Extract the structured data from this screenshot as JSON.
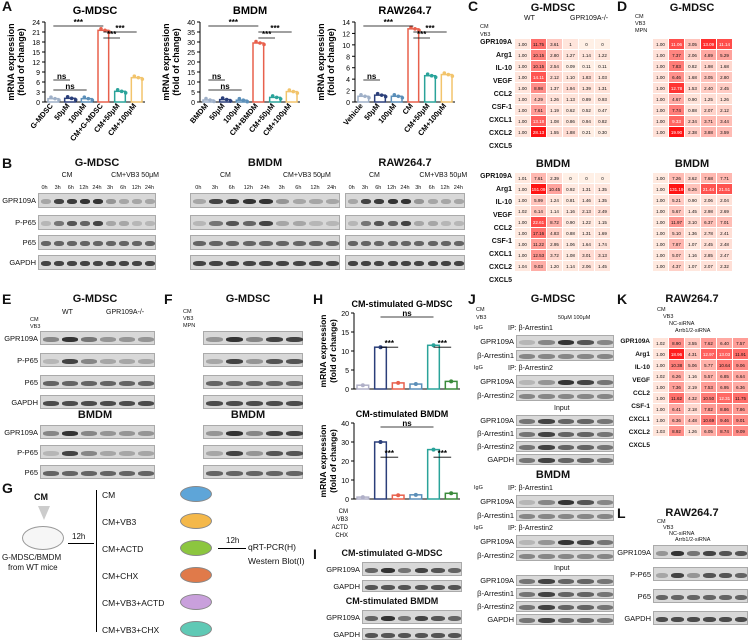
{
  "panels": {
    "A": "A",
    "B": "B",
    "C": "C",
    "D": "D",
    "E": "E",
    "F": "F",
    "G": "G",
    "H": "H",
    "I": "I",
    "J": "J",
    "K": "K",
    "L": "L"
  },
  "a_charts": [
    {
      "title": "G-MDSC",
      "ylabel": "mRNA expression\n(fold of change)",
      "yticks": [
        "0",
        "3",
        "6",
        "9",
        "12",
        "15",
        "18",
        "21",
        "24"
      ],
      "ymax": 24,
      "categories": [
        "G-MDSC",
        "50μM",
        "100μM",
        "CM+G-MDSC",
        "CM+50μM",
        "CM+100μM"
      ],
      "values": [
        1.0,
        1.1,
        1.0,
        21.5,
        3.2,
        7.3
      ],
      "colors": [
        "#9fb0c8",
        "#2b3f7a",
        "#5b8fb9",
        "#e8604c",
        "#2aa39a",
        "#f2c46c"
      ],
      "sig": [
        "***",
        "***",
        "***",
        "ns",
        "ns"
      ]
    },
    {
      "title": "BMDM",
      "ylabel": "mRNA expression\n(fold of change)",
      "yticks": [
        "0",
        "5",
        "10",
        "15",
        "20",
        "25",
        "30",
        "35",
        "40"
      ],
      "ymax": 40,
      "categories": [
        "BMDM",
        "50μM",
        "100μM",
        "CM+BMDM",
        "CM+50μM",
        "CM+100μM"
      ],
      "values": [
        1.0,
        1.2,
        0.9,
        29.5,
        2.3,
        5.2
      ],
      "colors": [
        "#9fb0c8",
        "#2b3f7a",
        "#5b8fb9",
        "#e8604c",
        "#2aa39a",
        "#f2c46c"
      ],
      "sig": [
        "***",
        "***",
        "***",
        "ns",
        "ns"
      ]
    },
    {
      "title": "RAW264.7",
      "ylabel": "mRNA expression\n(fold of change)",
      "yticks": [
        "0",
        "2",
        "4",
        "6",
        "8",
        "10",
        "12",
        "14"
      ],
      "ymax": 14,
      "categories": [
        "Vehicle",
        "50μM",
        "100μM",
        "CM",
        "CM+50μM",
        "CM+100μM"
      ],
      "values": [
        1.0,
        1.2,
        1.0,
        12.8,
        4.6,
        4.8
      ],
      "colors": [
        "#9fb0c8",
        "#2b3f7a",
        "#5b8fb9",
        "#e8604c",
        "#2aa39a",
        "#f2c46c"
      ],
      "sig": [
        "***",
        "***",
        "***",
        "ns"
      ]
    }
  ],
  "B": {
    "rows": [
      "GPR109A",
      "P-P65",
      "P65",
      "GAPDH"
    ],
    "groups": [
      {
        "title": "G-MDSC",
        "cm": "CM",
        "vb3": "CM+VB3 50μM",
        "lanes": [
          "0h",
          "3h",
          "6h",
          "12h",
          "24h",
          "3h",
          "6h",
          "12h",
          "24h"
        ]
      },
      {
        "title": "BMDM",
        "cm": "CM",
        "vb3": "CM+VB3 50μM",
        "lanes": [
          "0h",
          "3h",
          "6h",
          "12h",
          "24h",
          "3h",
          "6h",
          "12h",
          "24h"
        ]
      },
      {
        "title": "RAW264.7",
        "cm": "CM",
        "vb3": "CM+VB3 50μM",
        "lanes": [
          "0h",
          "3h",
          "6h",
          "12h",
          "24h",
          "3h",
          "6h",
          "12h",
          "24h"
        ]
      }
    ]
  },
  "C": {
    "title_g": "G-MDSC",
    "title_b": "BMDM",
    "wt": "WT",
    "ko": "GPR109A-/-",
    "cond_labels": [
      "CM",
      "VB3"
    ],
    "genes": [
      "GPR109A",
      "Arg1",
      "IL-10",
      "VEGF",
      "CCL2",
      "CSF-1",
      "CXCL1",
      "CXCL2",
      "CXCL5"
    ],
    "g_vals": [
      [
        "1.00",
        "11.75",
        "3.61",
        "1",
        "0",
        "0"
      ],
      [
        "1.00",
        "10.15",
        "2.80",
        "1.27",
        "1.14",
        "1.22"
      ],
      [
        "1.00",
        "10.15",
        "2.54",
        "0.09",
        "0.11",
        "0.11"
      ],
      [
        "1.00",
        "14.11",
        "2.12",
        "1.10",
        "1.83",
        "1.03"
      ],
      [
        "1.00",
        "8.98",
        "1.37",
        "1.94",
        "1.39",
        "1.31"
      ],
      [
        "1.00",
        "4.29",
        "1.26",
        "1.13",
        "0.89",
        "0.93"
      ],
      [
        "1.00",
        "7.61",
        "1.19",
        "0.62",
        "0.52",
        "0.47"
      ],
      [
        "1.00",
        "13.18",
        "1.08",
        "0.86",
        "0.94",
        "0.82"
      ],
      [
        "1.00",
        "28.13",
        "1.55",
        "1.88",
        "0.21",
        "0.30"
      ]
    ],
    "b_vals": [
      [
        "1.01",
        "7.61",
        "2.39",
        "0",
        "0",
        "0"
      ],
      [
        "1.00",
        "151.09",
        "10.45",
        "0.92",
        "1.31",
        "1.35"
      ],
      [
        "1.00",
        "5.99",
        "1.24",
        "0.81",
        "1.46",
        "1.35"
      ],
      [
        "1.02",
        "6.14",
        "1.14",
        "1.16",
        "2.13",
        "2.49"
      ],
      [
        "1.00",
        "22.61",
        "8.72",
        "0.90",
        "1.22",
        "1.15"
      ],
      [
        "1.00",
        "17.16",
        "4.83",
        "0.88",
        "1.31",
        "1.69"
      ],
      [
        "1.00",
        "11.22",
        "2.95",
        "1.06",
        "1.64",
        "1.74"
      ],
      [
        "1.00",
        "12.53",
        "3.72",
        "1.08",
        "3.01",
        "3.13"
      ],
      [
        "1.04",
        "9.03",
        "1.20",
        "1.14",
        "2.06",
        "1.45"
      ]
    ]
  },
  "D": {
    "title_g": "G-MDSC",
    "title_b": "BMDM",
    "cond_labels": [
      "CM",
      "VB3",
      "MPN"
    ],
    "g_vals": [
      [
        "1.00",
        "11.06",
        "3.05",
        "13.09",
        "11.14"
      ],
      [
        "1.00",
        "7.37",
        "2.06",
        "4.89",
        "5.29"
      ],
      [
        "1.00",
        "7.83",
        "0.82",
        "1.98",
        "1.68"
      ],
      [
        "1.00",
        "6.46",
        "1.68",
        "3.05",
        "2.80"
      ],
      [
        "1.00",
        "12.78",
        "1.53",
        "2.40",
        "2.45"
      ],
      [
        "1.00",
        "4.67",
        "0.90",
        "1.25",
        "1.26"
      ],
      [
        "1.00",
        "7.74",
        "0.88",
        "2.07",
        "2.12"
      ],
      [
        "1.00",
        "9.33",
        "2.34",
        "3.71",
        "3.44"
      ],
      [
        "1.00",
        "19.90",
        "2.38",
        "3.88",
        "3.59"
      ]
    ],
    "b_vals": [
      [
        "1.00",
        "7.26",
        "3.62",
        "7.68",
        "7.71"
      ],
      [
        "1.00",
        "131.19",
        "6.26",
        "21.44",
        "21.51"
      ],
      [
        "1.00",
        "5.21",
        "0.90",
        "2.06",
        "2.04"
      ],
      [
        "1.00",
        "5.67",
        "1.45",
        "2.98",
        "2.69"
      ],
      [
        "1.00",
        "11.97",
        "3.10",
        "6.37",
        "7.01"
      ],
      [
        "1.00",
        "5.10",
        "1.36",
        "2.78",
        "2.41"
      ],
      [
        "1.00",
        "7.87",
        "1.07",
        "2.45",
        "2.48"
      ],
      [
        "1.00",
        "5.07",
        "1.16",
        "2.85",
        "2.47"
      ],
      [
        "1.00",
        "4.37",
        "1.07",
        "2.07",
        "2.32"
      ]
    ]
  },
  "E": {
    "title": "G-MDSC",
    "title2": "BMDM",
    "wt": "WT",
    "ko": "GPR109A-/-",
    "cond": [
      "CM",
      "VB3"
    ],
    "rows": [
      "GPR109A",
      "P-P65",
      "P65",
      "GAPDH"
    ]
  },
  "F": {
    "title": "G-MDSC",
    "title2": "BMDM",
    "cond": [
      "CM",
      "VB3",
      "MPN"
    ],
    "rows": [
      "GPR109A",
      "P-P65",
      "P65",
      "GAPDH"
    ]
  },
  "H": {
    "title1": "CM-stimulated G-MDSC",
    "title2": "CM-stimulated BMDM",
    "ylabel": "mRNA expression\n(fold of change)",
    "yticks1": [
      "0",
      "5",
      "10",
      "15",
      "20"
    ],
    "yticks2": [
      "0",
      "10",
      "20",
      "30",
      "40"
    ],
    "values1": [
      1.0,
      11.0,
      1.6,
      1.3,
      11.5,
      2.0
    ],
    "values2": [
      1.0,
      30.0,
      2.0,
      2.2,
      26.0,
      3.0
    ],
    "colors": [
      "#b0b0c8",
      "#2b3f7a",
      "#e8604c",
      "#5b8fb9",
      "#2aa39a",
      "#3a8a3a"
    ],
    "cond_labels": [
      "CM",
      "VB3",
      "ACTD",
      "CHX"
    ],
    "sig": [
      "***",
      "ns",
      "***"
    ]
  },
  "G": {
    "cm": "CM",
    "cell": "G-MDSC/BMDM\nfrom WT mice",
    "time": "12h",
    "time2": "12h",
    "groups": [
      "CM",
      "CM+VB3",
      "CM+ACTD",
      "CM+CHX",
      "CM+VB3+ACTD",
      "CM+VB3+CHX"
    ],
    "out1": "qRT-PCR(H)",
    "out2": "Western Blot(I)",
    "dish_colors": [
      "#5ea5d8",
      "#f4b84a",
      "#8cc63f",
      "#e07a4a",
      "#c9a0dc",
      "#5fc9b5"
    ]
  },
  "I": {
    "title1": "CM-stimulated G-MDSC",
    "title2": "CM-stimulated BMDM",
    "rows": [
      "GPR109A",
      "GAPDH"
    ]
  },
  "J": {
    "title1": "G-MDSC",
    "title2": "BMDM",
    "cond": [
      "CM",
      "VB3"
    ],
    "conc": "50μM 100μM",
    "igg": "IgG",
    "ip1": "IP: β-Arrestin1",
    "ip2": "IP: β-Arrestin2",
    "input": "Input",
    "rows_ip1": [
      "GPR109A",
      "β-Arrestin1"
    ],
    "rows_ip2": [
      "GPR109A",
      "β-Arrestin2"
    ],
    "rows_in": [
      "GPR109A",
      "β-Arrestin1",
      "β-Arrestin2",
      "GAPDH"
    ]
  },
  "K": {
    "title": "RAW264.7",
    "cond": [
      "CM",
      "VB3",
      "NC-siRNA",
      "Arrb1/2-siRNA"
    ],
    "genes": [
      "GPR109A",
      "Arg1",
      "IL-10",
      "VEGF",
      "CCL2",
      "CSF-1",
      "CXCL1",
      "CXCL2",
      "CXCL5"
    ],
    "vals": [
      [
        "1.02",
        "8.90",
        "3.55",
        "7.62",
        "6.40",
        "7.57"
      ],
      [
        "1.00",
        "18.96",
        "4.31",
        "12.97",
        "13.03",
        "11.91"
      ],
      [
        "1.00",
        "10.38",
        "5.06",
        "5.77",
        "10.64",
        "9.06"
      ],
      [
        "1.02",
        "6.26",
        "1.16",
        "5.57",
        "6.85",
        "6.64"
      ],
      [
        "1.00",
        "7.36",
        "2.19",
        "7.53",
        "6.95",
        "6.36"
      ],
      [
        "1.00",
        "11.62",
        "4.32",
        "10.50",
        "12.31",
        "11.75"
      ],
      [
        "1.00",
        "6.41",
        "2.18",
        "7.82",
        "8.86",
        "7.86"
      ],
      [
        "1.00",
        "6.36",
        "4.48",
        "10.69",
        "9.46",
        "9.01"
      ],
      [
        "1.03",
        "8.92",
        "1.26",
        "6.05",
        "8.74",
        "9.09"
      ]
    ]
  },
  "L": {
    "title": "RAW264.7",
    "cond": [
      "CM",
      "VB3",
      "NC-siRNA",
      "Arrb1/2-siRNA"
    ],
    "rows": [
      "GPR109A",
      "P-P65",
      "P65",
      "GAPDH"
    ]
  }
}
